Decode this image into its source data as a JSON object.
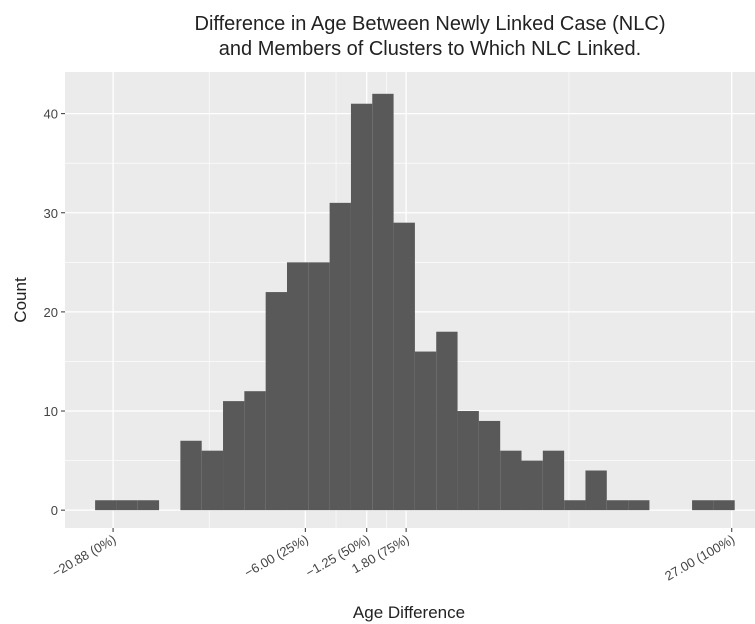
{
  "chart_data": {
    "type": "histogram",
    "title": [
      "Difference in Age Between Newly Linked Case (NLC)",
      "and Members of Clusters to Which NLC Linked."
    ],
    "x_label": "Age Difference",
    "y_label": "Count",
    "bins": [
      -22.27,
      -20.62,
      -18.97,
      -17.32,
      -15.67,
      -14.02,
      -12.37,
      -10.72,
      -9.07,
      -7.42,
      -5.77,
      -4.12,
      -2.47,
      -0.82,
      0.83,
      2.48,
      4.13,
      5.78,
      7.43,
      9.08,
      10.73,
      12.38,
      14.03,
      15.68,
      17.33,
      18.98,
      20.63,
      22.28,
      23.93,
      25.58,
      27.23
    ],
    "counts": [
      1,
      1,
      1,
      0,
      7,
      6,
      11,
      12,
      22,
      25,
      25,
      31,
      41,
      42,
      29,
      16,
      18,
      10,
      9,
      6,
      5,
      6,
      1,
      4,
      1,
      1,
      0,
      0,
      1,
      1
    ],
    "color": "#595959",
    "xlim": [
      -24.6,
      28.8
    ],
    "ylim": [
      -1.8,
      44.2
    ],
    "xticks": [
      {
        "value": -20.88,
        "label": "−20.88 (0%)"
      },
      {
        "value": -6,
        "label": "−6.00 (25%)"
      },
      {
        "value": -1.25,
        "label": "−1.25 (50%)"
      },
      {
        "value": 1.8,
        "label": "1.80 (75%)"
      },
      {
        "value": 27,
        "label": "27.00 (100%)"
      }
    ],
    "yticks": [
      0,
      10,
      20,
      30,
      40
    ],
    "grid": true
  }
}
